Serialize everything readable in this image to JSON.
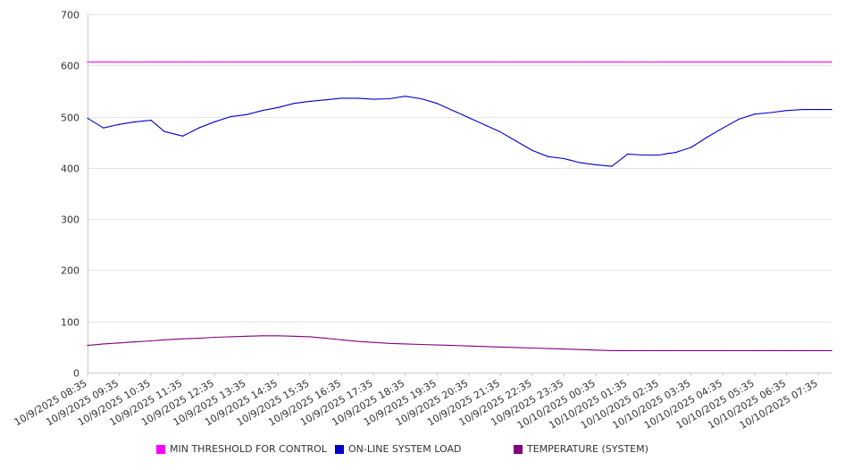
{
  "chart_data": {
    "type": "line",
    "title": "",
    "xlabel": "",
    "ylabel": "",
    "ylim": [
      0,
      700
    ],
    "yticks": [
      0,
      100,
      200,
      300,
      400,
      500,
      600,
      700
    ],
    "grid": true,
    "legend_position": "bottom",
    "x_tick_labels": [
      "10/9/2025 08:35",
      "10/9/2025 09:35",
      "10/9/2025 10:35",
      "10/9/2025 11:35",
      "10/9/2025 12:35",
      "10/9/2025 13:35",
      "10/9/2025 14:35",
      "10/9/2025 15:35",
      "10/9/2025 16:35",
      "10/9/2025 17:35",
      "10/9/2025 18:35",
      "10/9/2025 19:35",
      "10/9/2025 20:35",
      "10/9/2025 21:35",
      "10/9/2025 22:35",
      "10/9/2025 23:35",
      "10/10/2025 00:35",
      "10/10/2025 01:35",
      "10/10/2025 02:35",
      "10/10/2025 03:35",
      "10/10/2025 04:35",
      "10/10/2025 05:35",
      "10/10/2025 06:35",
      "10/10/2025 07:35"
    ],
    "x": [
      "10/9/2025 08:35",
      "10/9/2025 09:05",
      "10/9/2025 09:35",
      "10/9/2025 10:05",
      "10/9/2025 10:35",
      "10/9/2025 11:00",
      "10/9/2025 11:35",
      "10/9/2025 12:05",
      "10/9/2025 12:35",
      "10/9/2025 13:05",
      "10/9/2025 13:35",
      "10/9/2025 14:05",
      "10/9/2025 14:35",
      "10/9/2025 15:05",
      "10/9/2025 15:35",
      "10/9/2025 16:05",
      "10/9/2025 16:35",
      "10/9/2025 17:05",
      "10/9/2025 17:35",
      "10/9/2025 18:05",
      "10/9/2025 18:35",
      "10/9/2025 19:05",
      "10/9/2025 19:35",
      "10/9/2025 20:05",
      "10/9/2025 20:35",
      "10/9/2025 21:05",
      "10/9/2025 21:35",
      "10/9/2025 22:05",
      "10/9/2025 22:35",
      "10/9/2025 23:05",
      "10/9/2025 23:35",
      "10/10/2025 00:05",
      "10/10/2025 00:35",
      "10/10/2025 01:05",
      "10/10/2025 01:35",
      "10/10/2025 02:05",
      "10/10/2025 02:35",
      "10/10/2025 02:50",
      "10/10/2025 03:05",
      "10/10/2025 03:35",
      "10/10/2025 04:05",
      "10/10/2025 04:35",
      "10/10/2025 05:05",
      "10/10/2025 05:35",
      "10/10/2025 06:05",
      "10/10/2025 06:35",
      "10/10/2025 07:05",
      "10/10/2025 07:35",
      "10/10/2025 08:00"
    ],
    "series": [
      {
        "name": "MIN THRESHOLD FOR CONTROL",
        "color": "#ff00ff",
        "values": [
          607,
          607,
          607,
          607,
          607,
          607,
          607,
          607,
          607,
          607,
          607,
          607,
          607,
          607,
          607,
          607,
          607,
          607,
          607,
          607,
          607,
          607,
          607,
          607,
          607,
          607,
          607,
          607,
          607,
          607,
          607,
          607,
          607,
          607,
          607,
          607,
          607,
          607,
          607,
          607,
          607,
          607,
          607,
          607,
          607,
          607,
          607,
          607,
          607
        ]
      },
      {
        "name": "ON-LINE SYSTEM LOAD",
        "color": "#0000cc",
        "values": [
          497,
          478,
          485,
          490,
          493,
          471,
          462,
          478,
          490,
          500,
          504,
          512,
          518,
          526,
          530,
          533,
          536,
          536,
          534,
          535,
          540,
          535,
          526,
          512,
          498,
          484,
          470,
          452,
          434,
          422,
          418,
          410,
          406,
          403,
          427,
          425,
          425,
          428,
          430,
          440,
          460,
          478,
          495,
          505,
          508,
          512,
          514,
          514,
          514
        ]
      },
      {
        "name": "TEMPERATURE (SYSTEM)",
        "color": "#800080",
        "values": [
          53,
          56,
          58,
          60,
          62,
          64,
          66,
          67,
          69,
          70,
          71,
          72,
          72,
          71,
          70,
          67,
          64,
          61,
          59,
          57,
          56,
          55,
          54,
          53,
          52,
          51,
          50,
          49,
          48,
          47,
          46,
          45,
          44,
          43,
          43,
          43,
          43,
          43,
          43,
          43,
          43,
          43,
          43,
          43,
          43,
          43,
          43,
          43,
          43
        ]
      }
    ]
  }
}
